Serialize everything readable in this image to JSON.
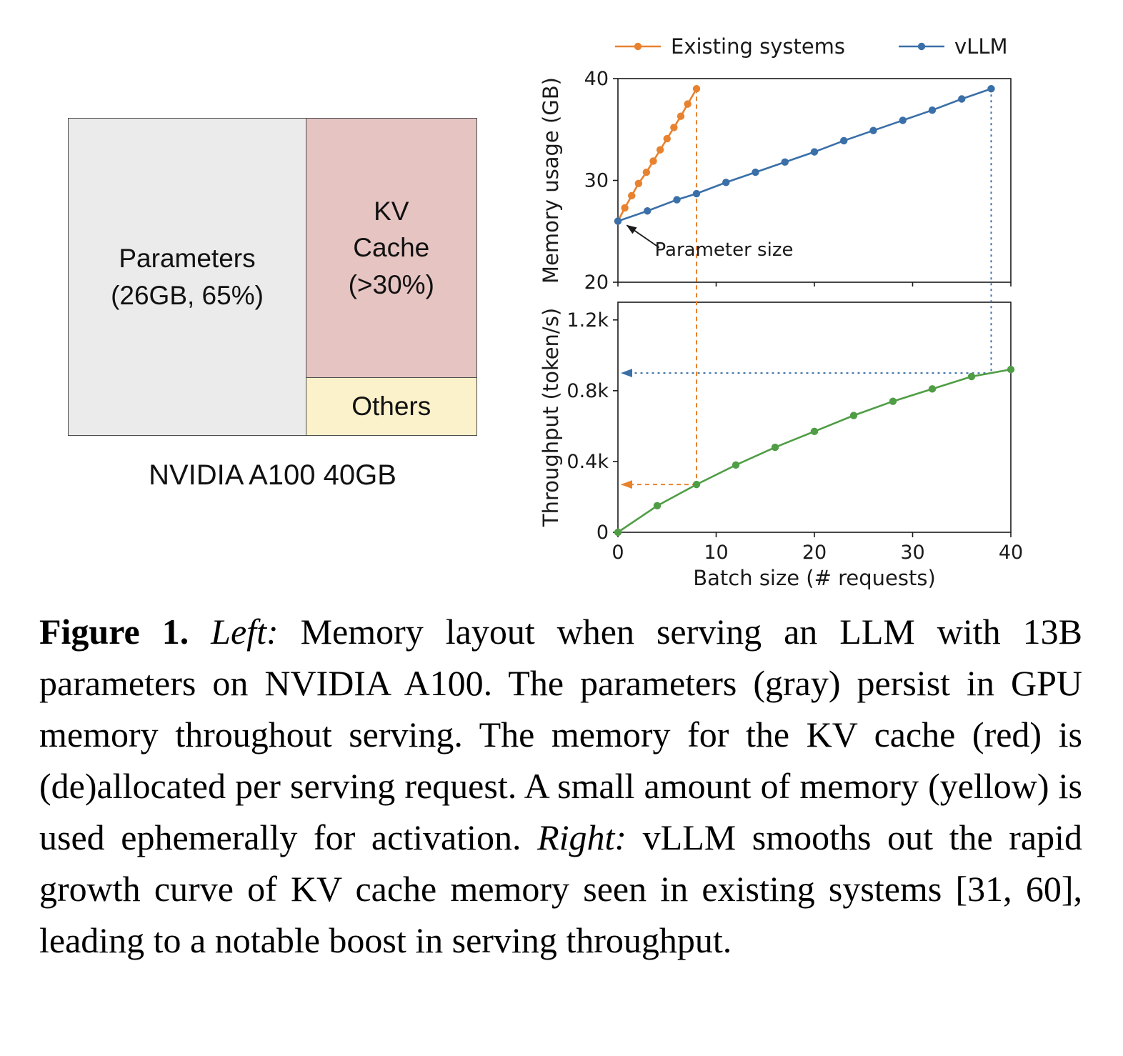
{
  "figure": {
    "left_diagram": {
      "parameters_line1": "Parameters",
      "parameters_line2": "(26GB, 65%)",
      "kv_line1": "KV",
      "kv_line2": "Cache",
      "kv_line3": "(>30%)",
      "others_label": "Others",
      "gpu_label": "NVIDIA A100 40GB",
      "colors": {
        "parameters": "#ebebeb",
        "kv_cache": "#e6c4c2",
        "others": "#fbf1cb",
        "border": "#4d4d4d"
      }
    },
    "caption": {
      "segments": [
        {
          "text": "Figure 1. ",
          "style": "bold"
        },
        {
          "text": "Left: ",
          "style": "italic"
        },
        {
          "text": "Memory layout when serving an LLM with 13B parameters on NVIDIA A100. The parameters (gray) persist in GPU memory throughout serving. The memory for the KV cache (red) is (de)allocated per serving request. A small amount of memory (yellow) is used ephemerally for activation. ",
          "style": "normal"
        },
        {
          "text": "Right: ",
          "style": "italic"
        },
        {
          "text": "vLLM smooths out the rapid growth curve of KV cache memory seen in existing systems [31, 60], leading to a notable boost in serving throughput.",
          "style": "normal"
        }
      ]
    }
  },
  "chart_data": [
    {
      "type": "line",
      "title": "",
      "xlabel": "",
      "ylabel": "Memory usage (GB)",
      "xlim": [
        0,
        40
      ],
      "ylim": [
        20,
        40
      ],
      "xticks": [
        0,
        10,
        20,
        30,
        40
      ],
      "yticks": [
        20,
        30,
        40
      ],
      "ytick_labels": [
        "20",
        "30",
        "40"
      ],
      "grid": false,
      "legend_position": "top",
      "series": [
        {
          "name": "Existing systems",
          "color": "#e8822f",
          "marker": "circle",
          "x": [
            0,
            0.7,
            1.4,
            2.1,
            2.9,
            3.6,
            4.3,
            5.0,
            5.7,
            6.4,
            7.1,
            8
          ],
          "y": [
            26,
            27.3,
            28.5,
            29.7,
            30.8,
            31.9,
            33.0,
            34.1,
            35.2,
            36.3,
            37.5,
            39
          ]
        },
        {
          "name": "vLLM",
          "color": "#3a6fa8",
          "marker": "circle",
          "x": [
            0,
            3,
            6,
            8,
            11,
            14,
            17,
            20,
            23,
            26,
            29,
            32,
            35,
            38
          ],
          "y": [
            26,
            27.0,
            28.1,
            28.7,
            29.8,
            30.8,
            31.8,
            32.8,
            33.9,
            34.9,
            35.9,
            36.9,
            38.0,
            39.0
          ]
        }
      ],
      "annotation": {
        "text": "Parameter size",
        "text_x": 10.8,
        "text_y": 22.6,
        "arrow_tail_x": 4.2,
        "arrow_tail_y": 23.4,
        "arrow_head_x": 0.9,
        "arrow_head_y": 25.6
      }
    },
    {
      "type": "line",
      "title": "",
      "xlabel": "Batch size (# requests)",
      "ylabel": "Throughput (token/s)",
      "xlim": [
        0,
        40
      ],
      "ylim": [
        0,
        1300
      ],
      "xticks": [
        0,
        10,
        20,
        30,
        40
      ],
      "xtick_labels": [
        "0",
        "10",
        "20",
        "30",
        "40"
      ],
      "yticks": [
        0,
        400,
        800,
        1200
      ],
      "ytick_labels": [
        "0",
        "0.4k",
        "0.8k",
        "1.2k"
      ],
      "grid": false,
      "series": [
        {
          "name": "vLLM throughput",
          "color": "#4f9d45",
          "marker": "circle",
          "x": [
            0,
            4,
            8,
            12,
            16,
            20,
            24,
            28,
            32,
            36,
            40
          ],
          "y": [
            0,
            150,
            270,
            380,
            480,
            570,
            660,
            740,
            810,
            880,
            920
          ]
        }
      ],
      "guides": {
        "existing_batch_size": 8,
        "existing_throughput": 270,
        "vllm_batch_size": 38,
        "vllm_throughput": 900,
        "memory_top_value": 39
      }
    }
  ]
}
